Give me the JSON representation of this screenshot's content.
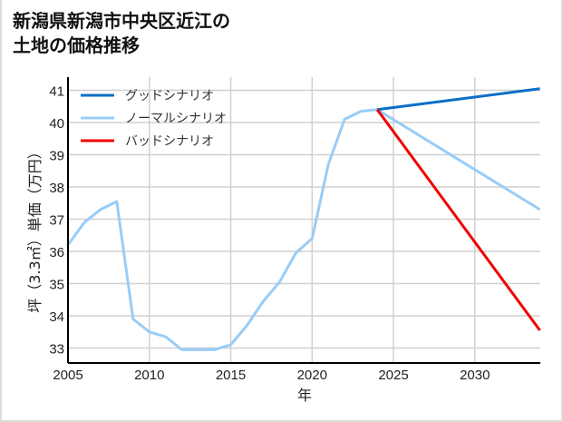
{
  "title_line1": "新潟県新潟市中央区近江の",
  "title_line2": "土地の価格推移",
  "chart_data": {
    "type": "line",
    "title": "新潟県新潟市中央区近江の土地の価格推移",
    "xlabel": "年",
    "ylabel": "坪（3.3㎡）単価（万円）",
    "xlim": [
      2005,
      2034
    ],
    "ylim": [
      32.6,
      41.4
    ],
    "x_ticks": [
      2005,
      2010,
      2015,
      2020,
      2025,
      2030
    ],
    "y_ticks": [
      33,
      34,
      35,
      36,
      37,
      38,
      39,
      40,
      41
    ],
    "grid": true,
    "legend_position": "upper left",
    "series": [
      {
        "name": "グッドシナリオ",
        "color": "#0a6fc6",
        "x": [
          2024,
          2034
        ],
        "values": [
          40.4,
          41.05
        ]
      },
      {
        "name": "ノーマルシナリオ",
        "color": "#99ccf7",
        "x": [
          2005,
          2006,
          2007,
          2008,
          2009,
          2010,
          2011,
          2012,
          2013,
          2014,
          2015,
          2016,
          2017,
          2018,
          2019,
          2020,
          2021,
          2022,
          2023,
          2024,
          2034
        ],
        "values": [
          36.2,
          36.9,
          37.3,
          37.55,
          33.9,
          33.5,
          33.35,
          32.95,
          32.95,
          32.95,
          33.1,
          33.7,
          34.45,
          35.05,
          35.95,
          36.4,
          38.7,
          40.1,
          40.35,
          40.4,
          37.3
        ]
      },
      {
        "name": "バッドシナリオ",
        "color": "#f00000",
        "x": [
          2024,
          2034
        ],
        "values": [
          40.4,
          33.55
        ]
      }
    ]
  }
}
